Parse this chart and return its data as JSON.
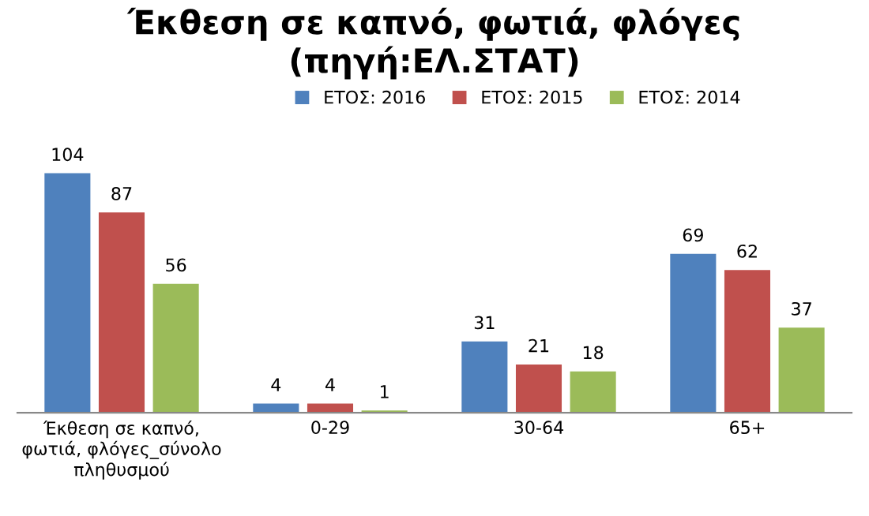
{
  "chart_data": {
    "type": "bar",
    "title": "Έκθεση σε καπνό, φωτιά, φλόγες\n(πηγή:ΕΛ.ΣΤΑΤ)",
    "categories": [
      "Έκθεση σε καπνό,\nφωτιά, φλόγες_σύνολο\nπληθυσμού",
      "0-29",
      "30-64",
      "65+"
    ],
    "series": [
      {
        "name": "ΕΤΟΣ: 2016",
        "color": "#4f81bd",
        "values": [
          104,
          4,
          31,
          69
        ]
      },
      {
        "name": "ΕΤΟΣ: 2015",
        "color": "#c0504d",
        "values": [
          87,
          4,
          21,
          62
        ]
      },
      {
        "name": "ΕΤΟΣ: 2014",
        "color": "#9bbb59",
        "values": [
          56,
          1,
          18,
          37
        ]
      }
    ],
    "data_labels": true,
    "legend": "top",
    "grid": false
  }
}
